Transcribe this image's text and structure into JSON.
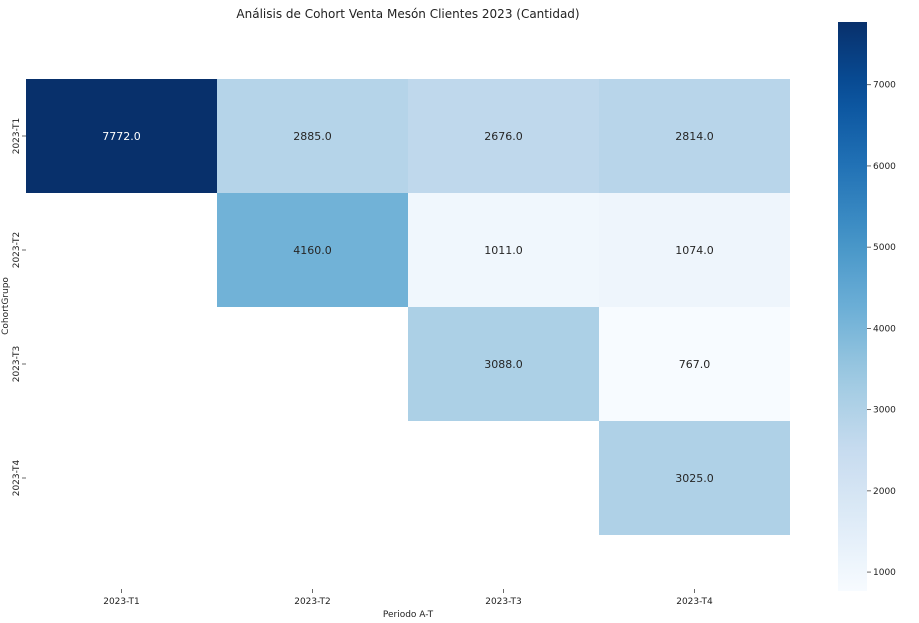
{
  "chart_data": {
    "type": "heatmap",
    "title": "Análisis de Cohort Venta Mesón Clientes 2023 (Cantidad)",
    "xlabel": "Periodo A-T",
    "ylabel": "CohortGrupo",
    "x_categories": [
      "2023-T1",
      "2023-T2",
      "2023-T3",
      "2023-T4"
    ],
    "y_categories": [
      "2023-T1",
      "2023-T2",
      "2023-T3",
      "2023-T4"
    ],
    "values": [
      [
        7772.0,
        2885.0,
        2676.0,
        2814.0
      ],
      [
        null,
        4160.0,
        1011.0,
        1074.0
      ],
      [
        null,
        null,
        3088.0,
        767.0
      ],
      [
        null,
        null,
        null,
        3025.0
      ]
    ],
    "value_labels": [
      [
        "7772.0",
        "2885.0",
        "2676.0",
        "2814.0"
      ],
      [
        "",
        "4160.0",
        "1011.0",
        "1074.0"
      ],
      [
        "",
        "",
        "3088.0",
        "767.0"
      ],
      [
        "",
        "",
        "",
        "3025.0"
      ]
    ],
    "colorbar": {
      "colormap": "Blues",
      "vmin": 767,
      "vmax": 7772,
      "ticks": [
        1000,
        2000,
        3000,
        4000,
        5000,
        6000,
        7000
      ]
    },
    "grid": false
  }
}
